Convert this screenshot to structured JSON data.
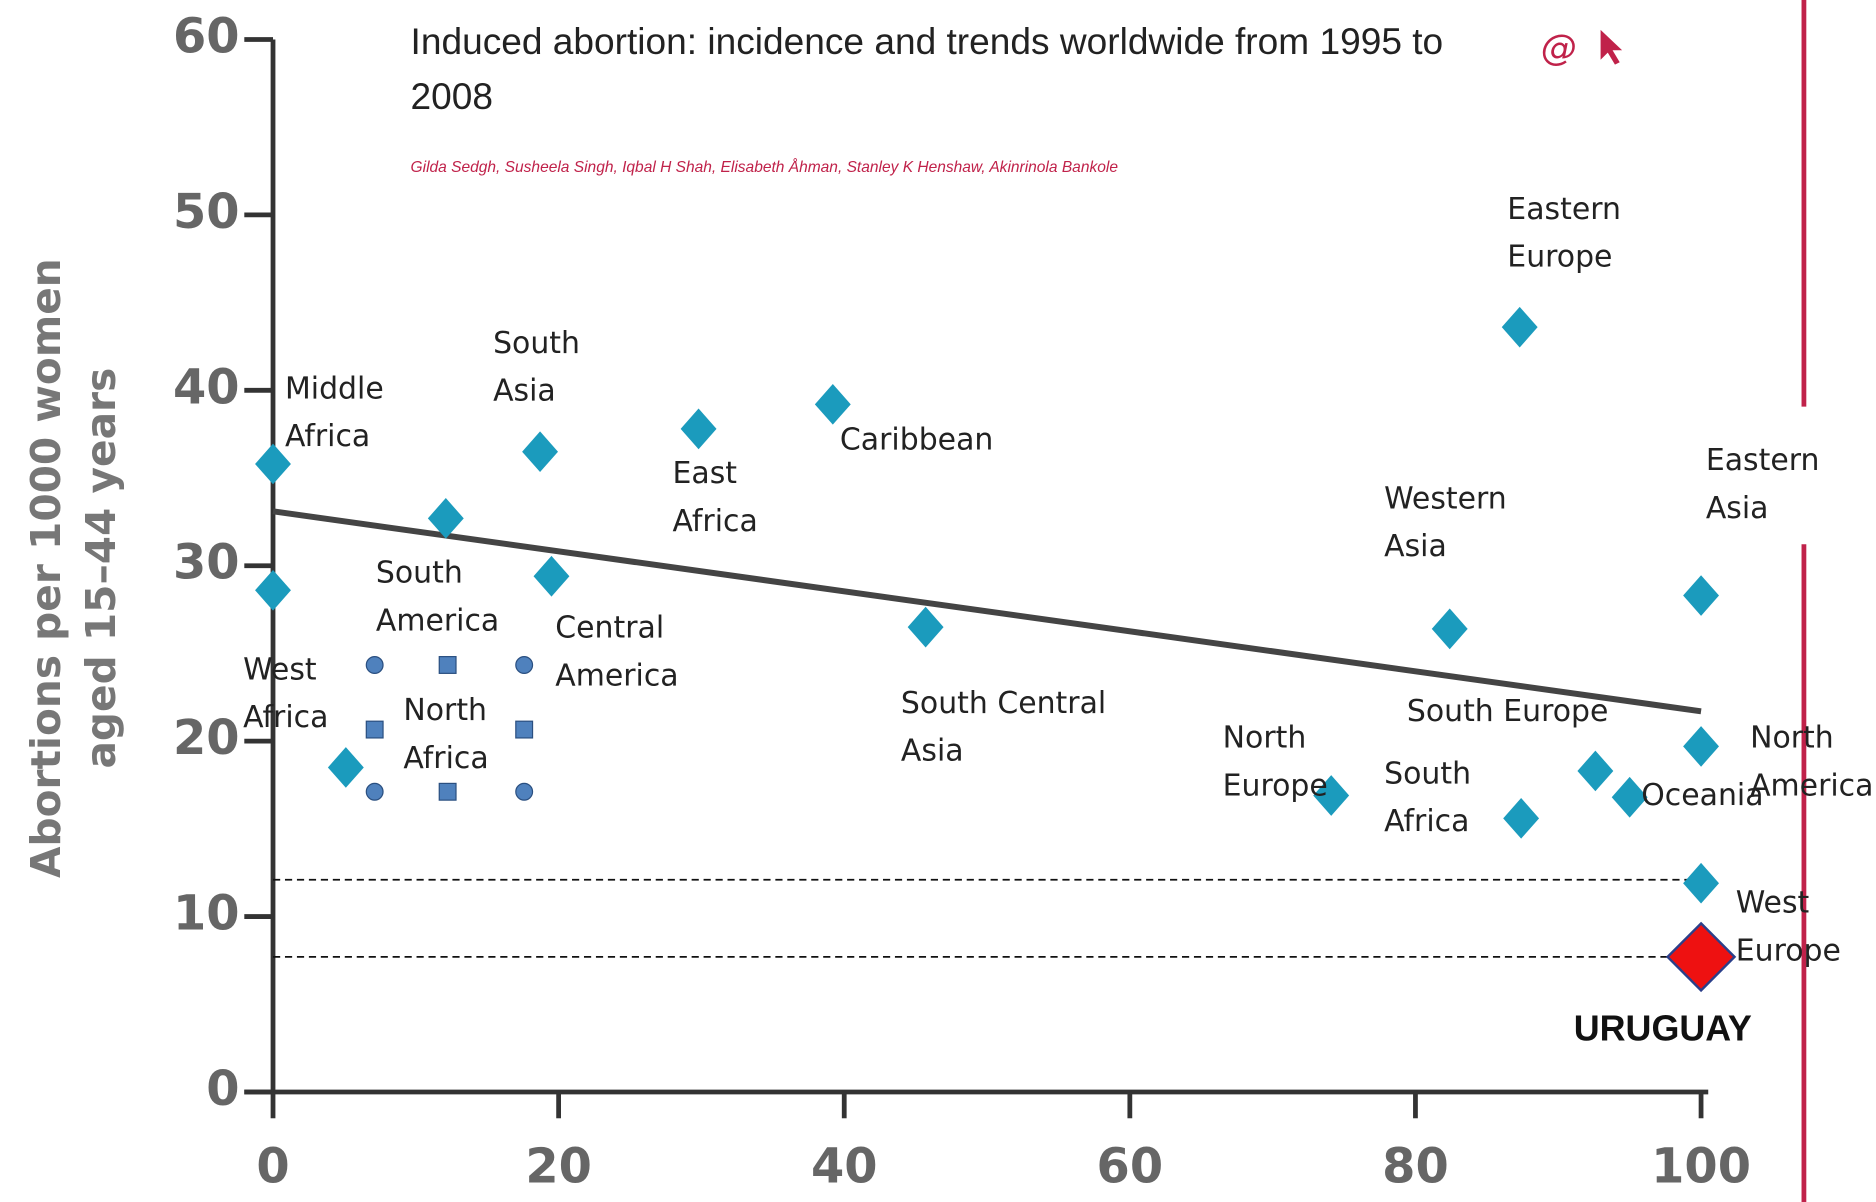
{
  "chart_data": {
    "type": "scatter",
    "title": "Induced abortion: incidence and trends worldwide from 1995 to 2008",
    "subtitle": "Gilda Sedgh, Susheela Singh, Iqbal H Shah, Elisabeth Åhman, Stanley K Henshaw, Akinrinola Bankole",
    "ylabel_lines": [
      "Abortions per 1000 women",
      "aged 15–44 years"
    ],
    "xlim": [
      0,
      100
    ],
    "ylim": [
      0,
      60
    ],
    "xticks": [
      0,
      20,
      40,
      60,
      80,
      100
    ],
    "yticks": [
      0,
      10,
      20,
      30,
      40,
      50,
      60
    ],
    "series": [
      {
        "color": "#1b9bbd",
        "x": [
          0,
          0,
          5.1,
          12.1,
          18.7,
          19.5,
          29.8,
          39.2,
          45.7,
          87.3,
          82.4,
          74.1,
          87.4,
          92.6,
          95.0,
          100,
          100,
          100
        ],
        "values": [
          35.8,
          28.6,
          18.5,
          32.7,
          36.5,
          29.4,
          37.8,
          39.2,
          26.5,
          43.6,
          26.4,
          16.9,
          15.6,
          18.3,
          16.8,
          28.3,
          19.7,
          11.9
        ]
      },
      {
        "name": "URUGUAY",
        "color": "#ee1111",
        "x": [
          100
        ],
        "values": [
          7.7
        ]
      }
    ],
    "trend": {
      "x": [
        0,
        100
      ],
      "values": [
        33.1,
        21.7
      ],
      "color": "#444444"
    },
    "reference_lines": [
      12.1,
      7.7
    ],
    "annotations": [
      "Middle Africa",
      "South Asia",
      "East Africa",
      "Caribbean",
      "Eastern Europe",
      "Western Asia",
      "Eastern Asia",
      "South America",
      "Central America",
      "West Africa",
      "North Africa",
      "South Central Asia",
      "North Europe",
      "South Africa",
      "South Europe",
      "Oceania",
      "North America",
      "West Europe"
    ]
  }
}
